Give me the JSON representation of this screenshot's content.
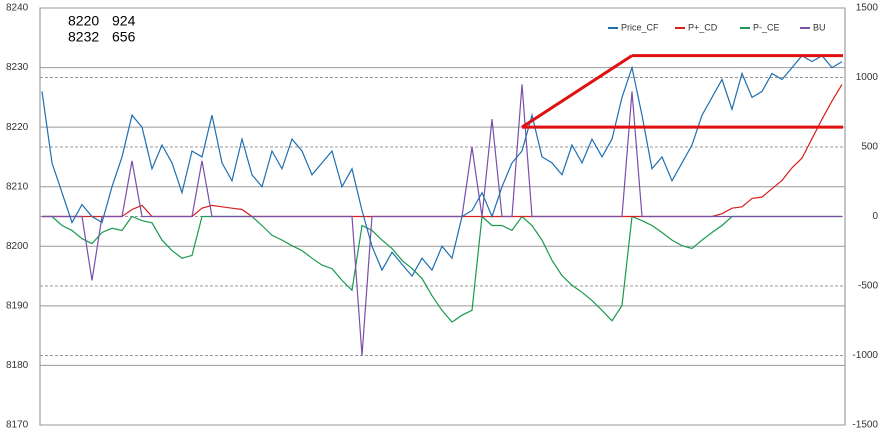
{
  "chart_data": {
    "type": "line",
    "annotations": [
      {
        "price": 8220,
        "value": 924
      },
      {
        "price": 8232,
        "value": 656
      }
    ],
    "ylim": [
      8170,
      8240
    ],
    "yticks": [
      8170,
      8180,
      8190,
      8200,
      8210,
      8220,
      8230,
      8240
    ],
    "y2lim": [
      -1500,
      1500
    ],
    "y2ticks": [
      -1500,
      -1000,
      -500,
      0,
      500,
      1000,
      1500
    ],
    "grid": true,
    "legend": "top-right",
    "series": [
      {
        "name": "Price_CF",
        "color": "#1f6fb0",
        "values": [
          8226,
          8214,
          8209,
          8204,
          8207,
          8205,
          8204,
          8210,
          8215,
          8222,
          8220,
          8213,
          8217,
          8214,
          8209,
          8216,
          8215,
          8222,
          8214,
          8211,
          8218,
          8212,
          8210,
          8216,
          8213,
          8218,
          8216,
          8212,
          8214,
          8216,
          8210,
          8213,
          8206,
          8200,
          8196,
          8199,
          8197,
          8195,
          8198,
          8196,
          8200,
          8198,
          8205,
          8206,
          8209,
          8205,
          8210,
          8214,
          8216,
          8222,
          8215,
          8214,
          8212,
          8217,
          8214,
          8218,
          8215,
          8218,
          8225,
          8230,
          8222,
          8213,
          8215,
          8211,
          8214,
          8217,
          8222,
          8225,
          8228,
          8223,
          8229,
          8225,
          8226,
          8229,
          8228,
          8230,
          8232,
          8231,
          8232,
          8230,
          8231
        ]
      },
      {
        "name": "P+_CD",
        "color": "#d62020",
        "axis": "y2",
        "values": [
          0,
          0,
          0,
          0,
          0,
          0,
          0,
          0,
          0,
          50,
          80,
          0,
          0,
          0,
          0,
          0,
          60,
          80,
          70,
          60,
          50,
          0,
          0,
          0,
          0,
          0,
          0,
          0,
          0,
          0,
          0,
          0,
          0,
          0,
          0,
          0,
          0,
          0,
          0,
          0,
          0,
          0,
          0,
          0,
          0,
          0,
          0,
          0,
          0,
          0,
          0,
          0,
          0,
          0,
          0,
          0,
          0,
          0,
          0,
          0,
          0,
          0,
          0,
          0,
          0,
          0,
          0,
          0,
          20,
          60,
          70,
          130,
          140,
          200,
          260,
          350,
          420,
          560,
          700,
          830,
          950
        ]
      },
      {
        "name": "P-_CE",
        "color": "#1a9a50",
        "axis": "y2",
        "values": [
          0,
          0,
          -65,
          -100,
          -160,
          -195,
          -115,
          -85,
          -100,
          0,
          -30,
          -45,
          -170,
          -245,
          -300,
          -280,
          0,
          0,
          0,
          0,
          0,
          0,
          -65,
          -135,
          -170,
          -210,
          -245,
          -300,
          -350,
          -375,
          -460,
          -530,
          -65,
          -100,
          -170,
          -230,
          -315,
          -375,
          -445,
          -570,
          -675,
          -760,
          -710,
          -675,
          0,
          -65,
          -65,
          -100,
          0,
          -65,
          -170,
          -315,
          -425,
          -495,
          -545,
          -605,
          -675,
          -750,
          -640,
          0,
          -30,
          -65,
          -115,
          -170,
          -210,
          -230,
          -170,
          -115,
          -65,
          0,
          0,
          0,
          0,
          0,
          0,
          0,
          0,
          0,
          0,
          0,
          0
        ]
      },
      {
        "name": "BU",
        "color": "#7a4fa8",
        "axis": "y2",
        "values": [
          0,
          0,
          0,
          0,
          0,
          -460,
          0,
          0,
          0,
          400,
          0,
          0,
          0,
          0,
          0,
          0,
          400,
          0,
          0,
          0,
          0,
          0,
          0,
          0,
          0,
          0,
          0,
          0,
          0,
          0,
          0,
          0,
          -1000,
          0,
          0,
          0,
          0,
          0,
          0,
          0,
          0,
          0,
          0,
          500,
          0,
          700,
          0,
          0,
          950,
          0,
          0,
          0,
          0,
          0,
          0,
          0,
          0,
          0,
          0,
          900,
          0,
          0,
          0,
          0,
          0,
          0,
          0,
          0,
          0,
          0,
          0,
          0,
          0,
          0,
          0,
          0,
          0,
          0,
          0,
          0,
          0
        ]
      }
    ]
  }
}
